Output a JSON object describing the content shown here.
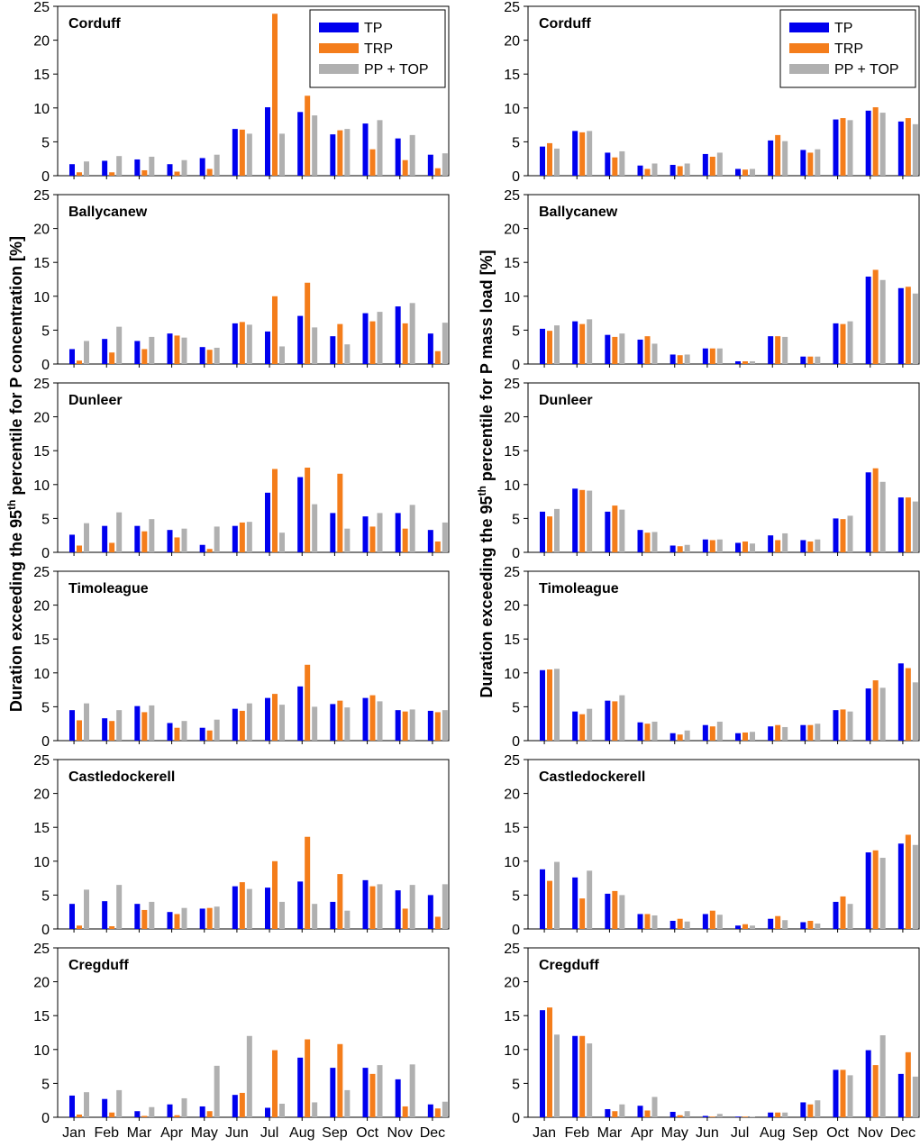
{
  "figure": {
    "ylabel_left": {
      "pre": "Duration exceeding the 95",
      "sup": "th",
      "post": " percentile for P concentration [%]"
    },
    "ylabel_right": {
      "pre": "Duration exceeding the 95",
      "sup": "th",
      "post": " percentile for P mass load [%]"
    }
  },
  "colors": {
    "TP": "#0000ee",
    "TRP": "#f47d1b",
    "PPTOP": "#b0b0b0"
  },
  "chart_data": {
    "type": "bar",
    "categories": [
      "Jan",
      "Feb",
      "Mar",
      "Apr",
      "May",
      "Jun",
      "Jul",
      "Aug",
      "Sep",
      "Oct",
      "Nov",
      "Dec"
    ],
    "ylim": [
      0,
      25
    ],
    "yticks": [
      "0",
      "5",
      "10",
      "15",
      "20",
      "25"
    ],
    "legend": {
      "position": "top-right",
      "entries": [
        "TP",
        "TRP",
        "PP + TOP"
      ]
    },
    "panels": [
      {
        "column": "concentration",
        "site": "Corduff",
        "series": [
          {
            "name": "TP",
            "values": [
              1.7,
              2.2,
              2.4,
              1.7,
              2.6,
              6.9,
              10.1,
              9.4,
              6.1,
              7.7,
              5.5,
              3.1
            ]
          },
          {
            "name": "TRP",
            "values": [
              0.5,
              0.5,
              0.8,
              0.6,
              1.0,
              6.8,
              23.9,
              11.8,
              6.7,
              3.9,
              2.3,
              1.1
            ]
          },
          {
            "name": "PP + TOP",
            "values": [
              2.1,
              2.9,
              2.8,
              2.3,
              3.1,
              6.2,
              6.2,
              8.9,
              6.9,
              8.2,
              6.0,
              3.3
            ]
          }
        ]
      },
      {
        "column": "concentration",
        "site": "Ballycanew",
        "series": [
          {
            "name": "TP",
            "values": [
              2.2,
              3.7,
              3.4,
              4.5,
              2.5,
              6.0,
              4.8,
              7.1,
              4.1,
              7.5,
              8.5,
              4.5
            ]
          },
          {
            "name": "TRP",
            "values": [
              0.5,
              1.7,
              2.2,
              4.2,
              2.1,
              6.2,
              10.0,
              12.0,
              5.9,
              6.3,
              6.0,
              1.9
            ]
          },
          {
            "name": "PP + TOP",
            "values": [
              3.4,
              5.5,
              4.0,
              3.9,
              2.4,
              5.8,
              2.6,
              5.4,
              2.9,
              7.7,
              9.0,
              6.1
            ]
          }
        ]
      },
      {
        "column": "concentration",
        "site": "Dunleer",
        "series": [
          {
            "name": "TP",
            "values": [
              2.6,
              3.9,
              3.9,
              3.3,
              1.1,
              3.9,
              8.8,
              11.1,
              5.8,
              5.3,
              5.8,
              3.3
            ]
          },
          {
            "name": "TRP",
            "values": [
              1.0,
              1.4,
              3.1,
              2.2,
              0.5,
              4.4,
              12.3,
              12.5,
              11.6,
              3.8,
              3.5,
              1.6
            ]
          },
          {
            "name": "PP + TOP",
            "values": [
              4.3,
              5.9,
              4.9,
              3.5,
              3.8,
              4.5,
              2.9,
              7.1,
              3.5,
              5.8,
              7.0,
              4.4
            ]
          }
        ]
      },
      {
        "column": "concentration",
        "site": "Timoleague",
        "series": [
          {
            "name": "TP",
            "values": [
              4.5,
              3.3,
              5.1,
              2.6,
              1.9,
              4.7,
              6.3,
              8.0,
              5.4,
              6.3,
              4.5,
              4.4
            ]
          },
          {
            "name": "TRP",
            "values": [
              3.0,
              2.9,
              4.2,
              1.9,
              1.5,
              4.4,
              6.9,
              11.2,
              5.9,
              6.7,
              4.3,
              4.2
            ]
          },
          {
            "name": "PP + TOP",
            "values": [
              5.5,
              4.5,
              5.2,
              2.9,
              3.1,
              5.5,
              5.3,
              5.0,
              4.9,
              5.8,
              4.6,
              4.5
            ]
          }
        ]
      },
      {
        "column": "concentration",
        "site": "Castledockerell",
        "series": [
          {
            "name": "TP",
            "values": [
              3.7,
              4.1,
              3.7,
              2.5,
              3.0,
              6.3,
              6.1,
              7.0,
              4.0,
              7.2,
              5.7,
              5.0
            ]
          },
          {
            "name": "TRP",
            "values": [
              0.5,
              0.4,
              2.8,
              2.2,
              3.1,
              6.9,
              10.0,
              13.6,
              8.1,
              6.3,
              3.0,
              1.8
            ]
          },
          {
            "name": "PP + TOP",
            "values": [
              5.8,
              6.5,
              4.0,
              3.1,
              3.3,
              5.9,
              4.0,
              3.7,
              2.7,
              6.6,
              6.5,
              6.6
            ]
          }
        ]
      },
      {
        "column": "concentration",
        "site": "Cregduff",
        "series": [
          {
            "name": "TP",
            "values": [
              3.2,
              2.7,
              0.9,
              1.9,
              1.6,
              3.3,
              1.4,
              8.8,
              7.3,
              7.3,
              5.6,
              1.9
            ]
          },
          {
            "name": "TRP",
            "values": [
              0.4,
              0.7,
              0.2,
              0.3,
              0.9,
              3.6,
              9.9,
              11.5,
              10.8,
              6.4,
              1.6,
              1.3
            ]
          },
          {
            "name": "PP + TOP",
            "values": [
              3.7,
              4.0,
              1.5,
              2.8,
              7.6,
              12.0,
              2.0,
              2.2,
              4.0,
              7.7,
              7.8,
              2.3
            ]
          }
        ]
      },
      {
        "column": "load",
        "site": "Corduff",
        "series": [
          {
            "name": "TP",
            "values": [
              4.3,
              6.6,
              3.4,
              1.5,
              1.6,
              3.2,
              1.0,
              5.2,
              3.8,
              8.3,
              9.6,
              8.0
            ]
          },
          {
            "name": "TRP",
            "values": [
              4.8,
              6.4,
              2.7,
              1.0,
              1.4,
              2.8,
              0.9,
              6.0,
              3.4,
              8.5,
              10.1,
              8.5
            ]
          },
          {
            "name": "PP + TOP",
            "values": [
              4.0,
              6.6,
              3.6,
              1.8,
              1.8,
              3.4,
              1.0,
              5.1,
              3.9,
              8.2,
              9.3,
              7.6
            ]
          }
        ]
      },
      {
        "column": "load",
        "site": "Ballycanew",
        "series": [
          {
            "name": "TP",
            "values": [
              5.2,
              6.3,
              4.3,
              3.6,
              1.4,
              2.3,
              0.4,
              4.1,
              1.1,
              6.0,
              12.9,
              11.2
            ]
          },
          {
            "name": "TRP",
            "values": [
              4.9,
              5.9,
              4.0,
              4.1,
              1.3,
              2.3,
              0.4,
              4.1,
              1.1,
              5.9,
              13.9,
              11.4
            ]
          },
          {
            "name": "PP + TOP",
            "values": [
              5.7,
              6.6,
              4.5,
              3.0,
              1.4,
              2.3,
              0.4,
              4.0,
              1.1,
              6.3,
              12.4,
              10.4
            ]
          }
        ]
      },
      {
        "column": "load",
        "site": "Dunleer",
        "series": [
          {
            "name": "TP",
            "values": [
              6.0,
              9.4,
              6.0,
              3.3,
              1.0,
              1.9,
              1.4,
              2.5,
              1.8,
              5.0,
              11.8,
              8.1
            ]
          },
          {
            "name": "TRP",
            "values": [
              5.3,
              9.2,
              6.9,
              2.9,
              0.9,
              1.8,
              1.6,
              1.8,
              1.6,
              4.9,
              12.4,
              8.1
            ]
          },
          {
            "name": "PP + TOP",
            "values": [
              6.4,
              9.1,
              6.3,
              3.0,
              1.1,
              1.9,
              1.3,
              2.8,
              1.9,
              5.4,
              10.4,
              7.5
            ]
          }
        ]
      },
      {
        "column": "load",
        "site": "Timoleague",
        "series": [
          {
            "name": "TP",
            "values": [
              10.4,
              4.3,
              5.9,
              2.7,
              1.1,
              2.3,
              1.1,
              2.1,
              2.3,
              4.5,
              7.7,
              11.4
            ]
          },
          {
            "name": "TRP",
            "values": [
              10.5,
              3.9,
              5.8,
              2.5,
              0.9,
              2.1,
              1.2,
              2.3,
              2.3,
              4.6,
              8.9,
              10.7
            ]
          },
          {
            "name": "PP + TOP",
            "values": [
              10.6,
              4.7,
              6.7,
              2.8,
              1.5,
              2.8,
              1.3,
              2.0,
              2.5,
              4.3,
              7.8,
              8.6
            ]
          }
        ]
      },
      {
        "column": "load",
        "site": "Castledockerell",
        "series": [
          {
            "name": "TP",
            "values": [
              8.8,
              7.6,
              5.2,
              2.2,
              1.2,
              2.2,
              0.5,
              1.5,
              1.0,
              4.0,
              11.3,
              12.6
            ]
          },
          {
            "name": "TRP",
            "values": [
              7.1,
              4.5,
              5.6,
              2.2,
              1.5,
              2.7,
              0.7,
              1.9,
              1.2,
              4.8,
              11.6,
              13.9
            ]
          },
          {
            "name": "PP + TOP",
            "values": [
              9.9,
              8.6,
              5.0,
              2.0,
              1.1,
              2.1,
              0.5,
              1.3,
              0.8,
              3.7,
              10.5,
              12.4
            ]
          }
        ]
      },
      {
        "column": "load",
        "site": "Cregduff",
        "series": [
          {
            "name": "TP",
            "values": [
              15.8,
              12.0,
              1.2,
              1.7,
              0.8,
              0.2,
              0.1,
              0.7,
              2.2,
              7.0,
              9.9,
              6.4
            ]
          },
          {
            "name": "TRP",
            "values": [
              16.2,
              12.0,
              0.9,
              1.0,
              0.3,
              0.1,
              0.1,
              0.7,
              1.9,
              7.0,
              7.7,
              9.6
            ]
          },
          {
            "name": "PP + TOP",
            "values": [
              12.2,
              10.9,
              1.9,
              3.0,
              0.9,
              0.5,
              0.1,
              0.7,
              2.5,
              6.2,
              12.1,
              6.0
            ]
          }
        ]
      }
    ]
  }
}
